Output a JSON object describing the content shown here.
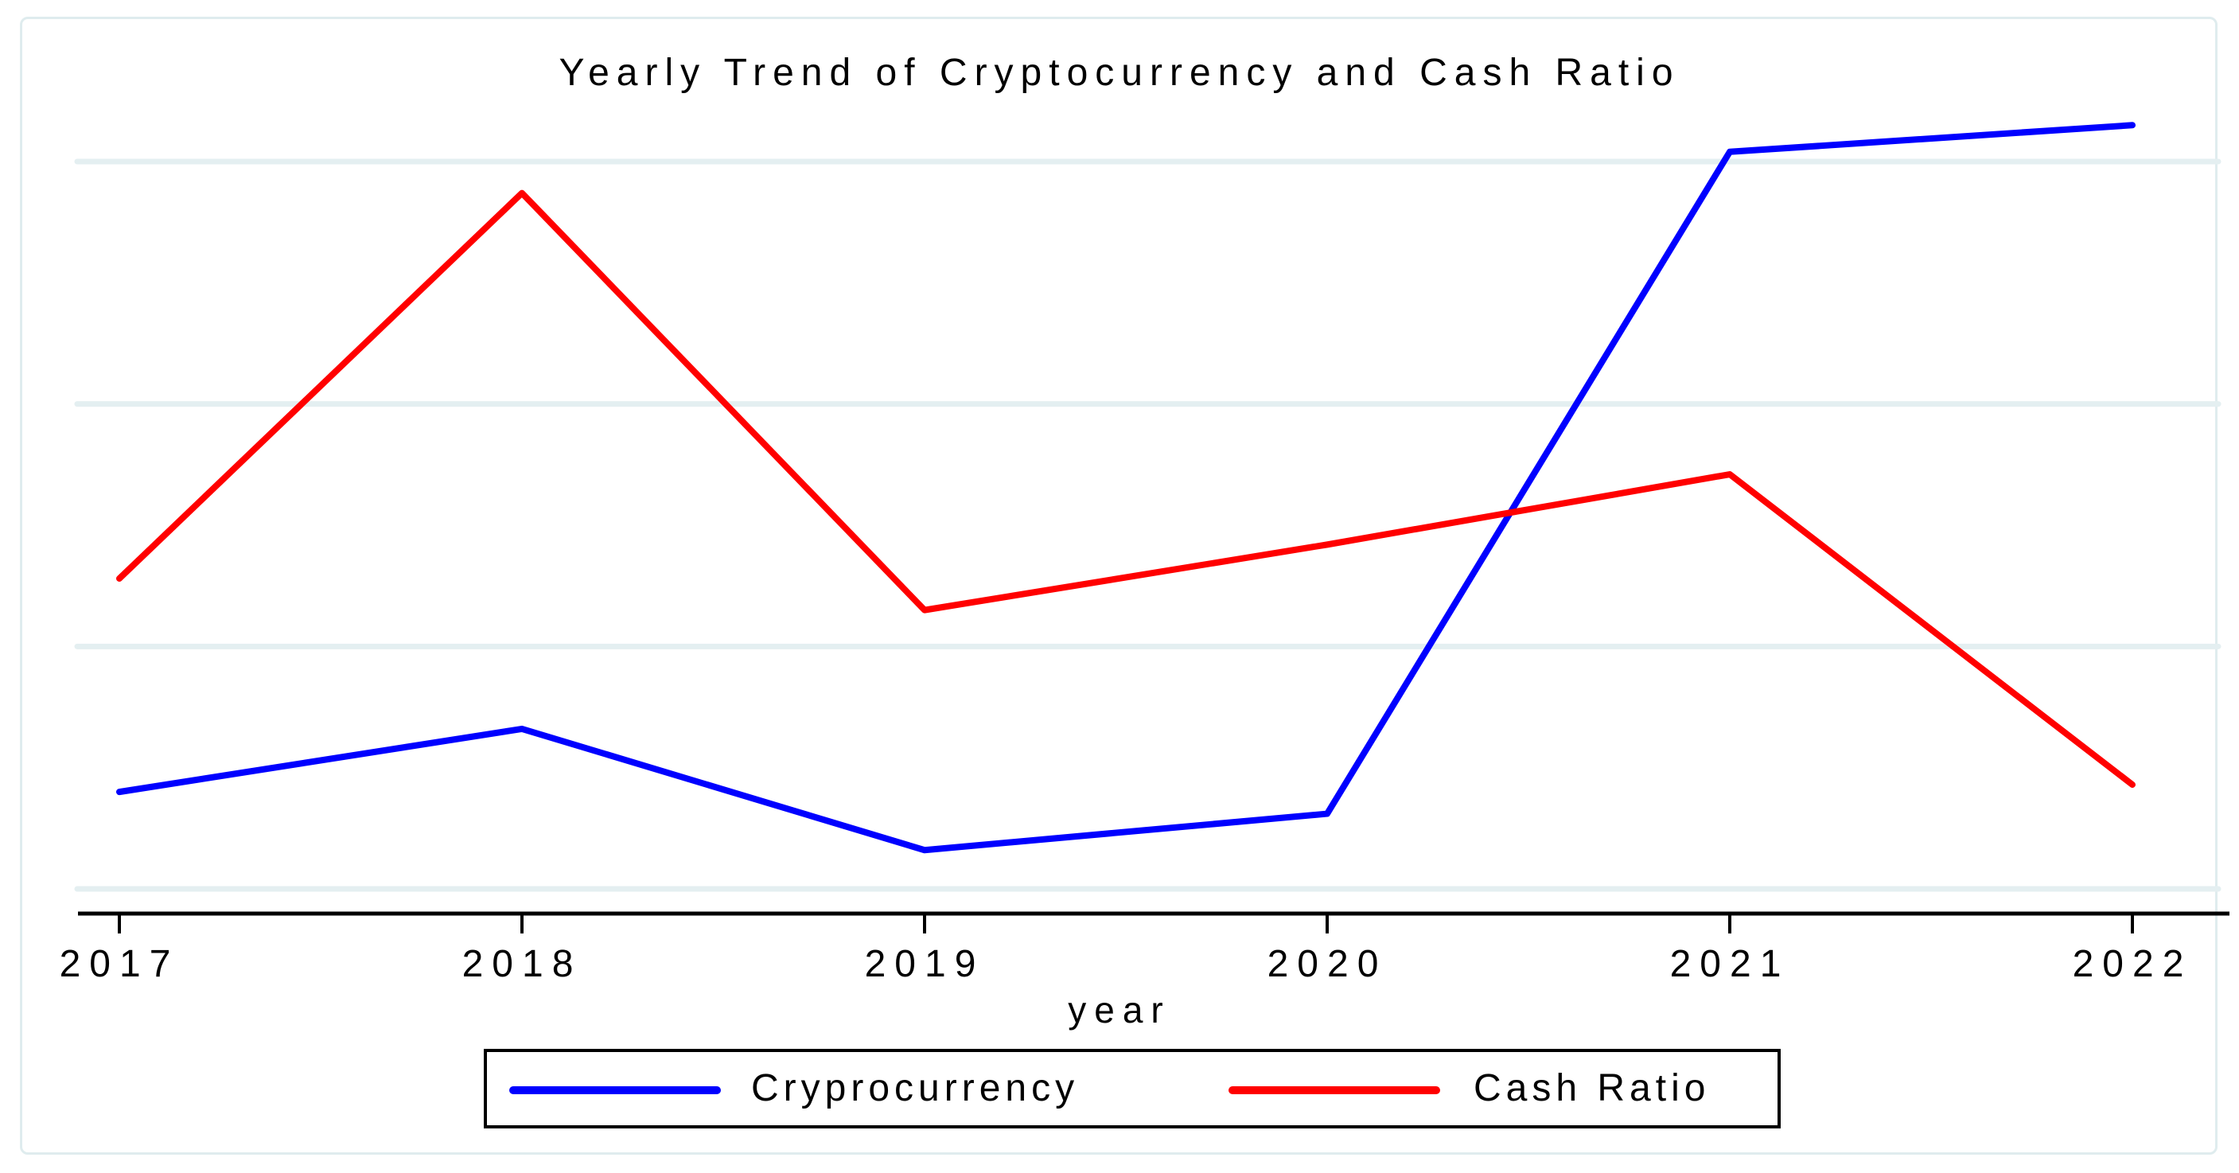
{
  "chart_data": {
    "type": "line",
    "title": "Yearly Trend of Cryptocurrency and Cash Ratio",
    "xlabel": "year",
    "x": [
      2017,
      2018,
      2019,
      2020,
      2021,
      2022
    ],
    "x_tick_labels": [
      "2017",
      "2018",
      "2019",
      "2020",
      "2021",
      "2022"
    ],
    "y_axis": {
      "tick_labels_visible": false,
      "gridline_values": [
        0,
        1,
        2,
        3
      ],
      "note": "no numeric y tick labels are shown in the image; series values are expressed in gridline intervals above the bottom gridline"
    },
    "series": [
      {
        "name": "Cryprocurrency",
        "color": "#0000ff",
        "values": [
          0.4,
          0.66,
          0.16,
          0.31,
          3.04,
          3.15
        ]
      },
      {
        "name": "Cash Ratio",
        "color": "#ff0000",
        "values": [
          1.28,
          2.87,
          1.15,
          1.42,
          1.71,
          0.43
        ]
      }
    ],
    "legend": {
      "position": "bottom-center",
      "boxed": true
    },
    "grid": true,
    "xlim": [
      2017,
      2022
    ],
    "colors": {
      "gridline": "#e4eff1",
      "axis": "#000000",
      "frame": "#dfecee",
      "text": "#000000",
      "background": "#ffffff"
    }
  }
}
